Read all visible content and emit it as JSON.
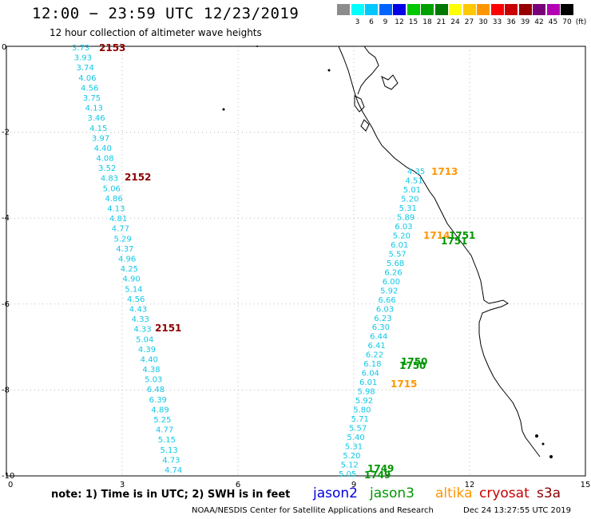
{
  "header": {
    "title": "12:00 − 23:59 UTC 12/23/2019",
    "subtitle": "12 hour collection of altimeter wave heights"
  },
  "color_scale": {
    "unit": "(ft)",
    "swatches": [
      {
        "label": "",
        "color": "#8c8c8c"
      },
      {
        "label": "3",
        "color": "#00ffff"
      },
      {
        "label": "6",
        "color": "#00c8ff"
      },
      {
        "label": "9",
        "color": "#0064ff"
      },
      {
        "label": "12",
        "color": "#0000e6"
      },
      {
        "label": "15",
        "color": "#00c800"
      },
      {
        "label": "18",
        "color": "#00a000"
      },
      {
        "label": "21",
        "color": "#007800"
      },
      {
        "label": "24",
        "color": "#ffff00"
      },
      {
        "label": "27",
        "color": "#ffc800"
      },
      {
        "label": "30",
        "color": "#ff9600"
      },
      {
        "label": "33",
        "color": "#ff0000"
      },
      {
        "label": "36",
        "color": "#c80000"
      },
      {
        "label": "39",
        "color": "#960000"
      },
      {
        "label": "42",
        "color": "#780078"
      },
      {
        "label": "45",
        "color": "#b400b4"
      },
      {
        "label": "70",
        "color": "#000000"
      }
    ]
  },
  "axes": {
    "x_ticks": [
      "0",
      "3",
      "6",
      "9",
      "12",
      "15"
    ],
    "y_ticks": [
      "0",
      "-2",
      "-4",
      "-6",
      "-8",
      "-10"
    ],
    "x_range": [
      0,
      15
    ],
    "y_range": [
      -10,
      0
    ]
  },
  "colors": {
    "swh": "#11c8e6",
    "jason2": "#0000dc",
    "jason3": "#009600",
    "altika": "#ff9600",
    "cryosat": "#c80000",
    "s3a": "#8c0000",
    "coast": "#000000",
    "grid": "#bbbbbb"
  },
  "track_west": {
    "values": [
      "3.73",
      "3.93",
      "3.74",
      "4.06",
      "4.56",
      "3.75",
      "4.13",
      "3.46",
      "4.15",
      "3.97",
      "4.40",
      "4.08",
      "3.52",
      "4.83",
      "5.06",
      "4.86",
      "4.13",
      "4.81",
      "4.77",
      "5.29",
      "4.37",
      "4.96",
      "4.25",
      "4.90",
      "5.14",
      "4.56",
      "4.43",
      "4.33",
      "4.33",
      "5.04",
      "4.39",
      "4.40",
      "4.38",
      "5.03",
      "6.48",
      "6.39",
      "4.89",
      "5.25",
      "4.77",
      "5.15",
      "5.13",
      "4.73",
      "4.74"
    ],
    "times": [
      {
        "label": "2153",
        "sat": "s3a"
      },
      {
        "label": "2152",
        "sat": "s3a"
      },
      {
        "label": "2151",
        "sat": "s3a"
      }
    ]
  },
  "track_east": {
    "values": [
      "4.35",
      "4.51",
      "5.01",
      "5.20",
      "5.31",
      "5.89",
      "6.03",
      "5.20",
      "6.01",
      "5.57",
      "5.68",
      "6.26",
      "6.00",
      "5.92",
      "6.66",
      "6.03",
      "6.23",
      "6.30",
      "6.44",
      "6.41",
      "6.22",
      "6.18",
      "6.04",
      "6.01",
      "5.98",
      "5.92",
      "5.80",
      "5.71",
      "5.57",
      "5.40",
      "5.31",
      "5.20",
      "5.12",
      "5.05"
    ],
    "times": [
      {
        "label": "1713",
        "sat": "altika"
      },
      {
        "label": "1714",
        "sat": "altika"
      },
      {
        "label": "1751",
        "sat": "jason3"
      },
      {
        "label": "1751",
        "sat": "jason3"
      },
      {
        "label": "1750",
        "sat": "jason3"
      },
      {
        "label": "1750",
        "sat": "jason3"
      },
      {
        "label": "1715",
        "sat": "altika"
      },
      {
        "label": "1749",
        "sat": "jason3"
      },
      {
        "label": "1749",
        "sat": "jason3"
      }
    ]
  },
  "footer": {
    "note": "note: 1) Time is in UTC; 2) SWH is in feet",
    "legend": [
      {
        "label": "jason2",
        "color": "#0000dc"
      },
      {
        "label": "jason3",
        "color": "#009600"
      },
      {
        "label": "altika",
        "color": "#ff9600"
      },
      {
        "label": "cryosat",
        "color": "#c80000"
      },
      {
        "label": "s3a",
        "color": "#8c0000"
      }
    ],
    "credit": "NOAA/NESDIS Center for Satellite Applications and Research",
    "timestamp": "Dec 24 13:27:55 UTC 2019"
  }
}
